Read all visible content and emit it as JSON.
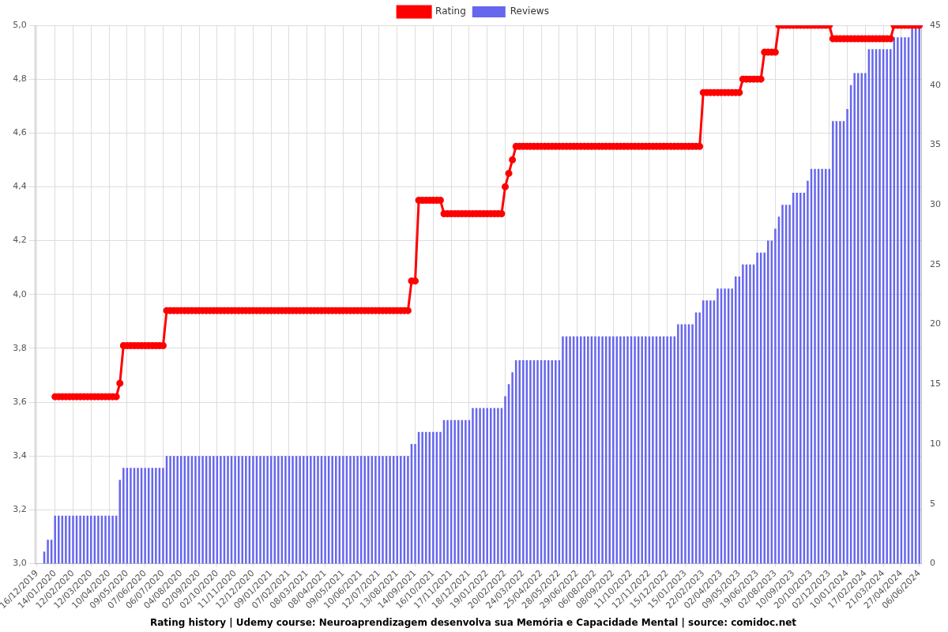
{
  "chart_data": {
    "type": "bar",
    "title": "Rating history | Udemy course: Neuroaprendizagem desenvolva sua Memória e Capacidade Mental | source: comidoc.net",
    "legend": "top",
    "grid": true,
    "categories": [
      "16/12/2019",
      null,
      null,
      null,
      null,
      "14/01/2020",
      null,
      null,
      null,
      null,
      "12/02/2020",
      null,
      null,
      null,
      null,
      "12/03/2020",
      null,
      null,
      null,
      null,
      "10/04/2020",
      null,
      null,
      null,
      null,
      "09/05/2020",
      null,
      null,
      null,
      null,
      "07/06/2020",
      null,
      null,
      null,
      null,
      "06/07/2020",
      null,
      null,
      null,
      null,
      "04/08/2020",
      null,
      null,
      null,
      null,
      "02/09/2020",
      null,
      null,
      null,
      null,
      "02/10/2020",
      null,
      null,
      null,
      null,
      "11/11/2020",
      null,
      null,
      null,
      null,
      "12/12/2020",
      null,
      null,
      null,
      null,
      "09/01/2021",
      null,
      null,
      null,
      null,
      "07/02/2021",
      null,
      null,
      null,
      null,
      "08/03/2021",
      null,
      null,
      null,
      null,
      "08/04/2021",
      null,
      null,
      null,
      null,
      "09/05/2021",
      null,
      null,
      null,
      null,
      "10/06/2021",
      null,
      null,
      null,
      null,
      "12/07/2021",
      null,
      null,
      null,
      null,
      "13/08/2021",
      null,
      null,
      null,
      null,
      "14/09/2021",
      null,
      null,
      null,
      null,
      "16/10/2021",
      null,
      null,
      null,
      null,
      "17/11/2021",
      null,
      null,
      null,
      null,
      "18/12/2021",
      null,
      null,
      null,
      null,
      "19/01/2022",
      null,
      null,
      null,
      null,
      "20/02/2022",
      null,
      null,
      null,
      null,
      "24/03/2022",
      null,
      null,
      null,
      null,
      "25/04/2022",
      null,
      null,
      null,
      null,
      "28/05/2022",
      null,
      null,
      null,
      null,
      "29/06/2022",
      null,
      null,
      null,
      null,
      "06/08/2022",
      null,
      null,
      null,
      null,
      "08/09/2022",
      null,
      null,
      null,
      null,
      "11/10/2022",
      null,
      null,
      null,
      null,
      "12/11/2022",
      null,
      null,
      null,
      null,
      "15/12/2022",
      null,
      null,
      null,
      null,
      "15/01/2023",
      null,
      null,
      null,
      null,
      "22/02/2023",
      null,
      null,
      null,
      null,
      "02/04/2023",
      null,
      null,
      null,
      null,
      "09/05/2023",
      null,
      null,
      null,
      null,
      "19/06/2023",
      null,
      null,
      null,
      null,
      "02/08/2023",
      null,
      null,
      null,
      null,
      "10/09/2023",
      null,
      null,
      null,
      null,
      "20/10/2023",
      null,
      null,
      null,
      null,
      "02/12/2023",
      null,
      null,
      null,
      null,
      "10/01/2024",
      null,
      null,
      null,
      null,
      "17/02/2024",
      null,
      null,
      null,
      null,
      "21/03/2024",
      null,
      null,
      null,
      null,
      "27/04/2024",
      null,
      null,
      null,
      null,
      "06/06/2024"
    ],
    "series": [
      {
        "name": "Rating",
        "type": "line",
        "color": "#ff0000",
        "marker": "circle",
        "axis": "y",
        "values": [
          null,
          null,
          null,
          null,
          null,
          3.62,
          3.62,
          3.62,
          3.62,
          3.62,
          3.62,
          3.62,
          3.62,
          3.62,
          3.62,
          3.62,
          3.62,
          3.62,
          3.62,
          3.62,
          3.62,
          3.62,
          3.62,
          3.67,
          3.81,
          3.81,
          3.81,
          3.81,
          3.81,
          3.81,
          3.81,
          3.81,
          3.81,
          3.81,
          3.81,
          3.81,
          3.94,
          3.94,
          3.94,
          3.94,
          3.94,
          3.94,
          3.94,
          3.94,
          3.94,
          3.94,
          3.94,
          3.94,
          3.94,
          3.94,
          3.94,
          3.94,
          3.94,
          3.94,
          3.94,
          3.94,
          3.94,
          3.94,
          3.94,
          3.94,
          3.94,
          3.94,
          3.94,
          3.94,
          3.94,
          3.94,
          3.94,
          3.94,
          3.94,
          3.94,
          3.94,
          3.94,
          3.94,
          3.94,
          3.94,
          3.94,
          3.94,
          3.94,
          3.94,
          3.94,
          3.94,
          3.94,
          3.94,
          3.94,
          3.94,
          3.94,
          3.94,
          3.94,
          3.94,
          3.94,
          3.94,
          3.94,
          3.94,
          3.94,
          3.94,
          3.94,
          3.94,
          3.94,
          3.94,
          3.94,
          3.94,
          3.94,
          3.94,
          3.94,
          4.05,
          4.05,
          4.35,
          4.35,
          4.35,
          4.35,
          4.35,
          4.35,
          4.35,
          4.3,
          4.3,
          4.3,
          4.3,
          4.3,
          4.3,
          4.3,
          4.3,
          4.3,
          4.3,
          4.3,
          4.3,
          4.3,
          4.3,
          4.3,
          4.3,
          4.3,
          4.4,
          4.45,
          4.5,
          4.55,
          4.55,
          4.55,
          4.55,
          4.55,
          4.55,
          4.55,
          4.55,
          4.55,
          4.55,
          4.55,
          4.55,
          4.55,
          4.55,
          4.55,
          4.55,
          4.55,
          4.55,
          4.55,
          4.55,
          4.55,
          4.55,
          4.55,
          4.55,
          4.55,
          4.55,
          4.55,
          4.55,
          4.55,
          4.55,
          4.55,
          4.55,
          4.55,
          4.55,
          4.55,
          4.55,
          4.55,
          4.55,
          4.55,
          4.55,
          4.55,
          4.55,
          4.55,
          4.55,
          4.55,
          4.55,
          4.55,
          4.55,
          4.55,
          4.55,
          4.55,
          4.55,
          4.75,
          4.75,
          4.75,
          4.75,
          4.75,
          4.75,
          4.75,
          4.75,
          4.75,
          4.75,
          4.75,
          4.8,
          4.8,
          4.8,
          4.8,
          4.8,
          4.8,
          4.9,
          4.9,
          4.9,
          4.9,
          5,
          5,
          5,
          5,
          5,
          5,
          5,
          5,
          5,
          5,
          5,
          5,
          5,
          5,
          5,
          4.95,
          4.95,
          4.95,
          4.95,
          4.95,
          4.95,
          4.95,
          4.95,
          4.95,
          4.95,
          4.95,
          4.95,
          4.95,
          4.95,
          4.95,
          4.95,
          4.95,
          5,
          5,
          5,
          5,
          5,
          5,
          5,
          5
        ]
      },
      {
        "name": "Reviews",
        "type": "bar",
        "color": "#6666ee",
        "axis": "y2",
        "values": [
          0,
          0,
          1,
          2,
          2,
          4,
          4,
          4,
          4,
          4,
          4,
          4,
          4,
          4,
          4,
          4,
          4,
          4,
          4,
          4,
          4,
          4,
          4,
          7,
          8,
          8,
          8,
          8,
          8,
          8,
          8,
          8,
          8,
          8,
          8,
          8,
          9,
          9,
          9,
          9,
          9,
          9,
          9,
          9,
          9,
          9,
          9,
          9,
          9,
          9,
          9,
          9,
          9,
          9,
          9,
          9,
          9,
          9,
          9,
          9,
          9,
          9,
          9,
          9,
          9,
          9,
          9,
          9,
          9,
          9,
          9,
          9,
          9,
          9,
          9,
          9,
          9,
          9,
          9,
          9,
          9,
          9,
          9,
          9,
          9,
          9,
          9,
          9,
          9,
          9,
          9,
          9,
          9,
          9,
          9,
          9,
          9,
          9,
          9,
          9,
          9,
          9,
          9,
          9,
          10,
          10,
          11,
          11,
          11,
          11,
          11,
          11,
          11,
          12,
          12,
          12,
          12,
          12,
          12,
          12,
          12,
          13,
          13,
          13,
          13,
          13,
          13,
          13,
          13,
          13,
          14,
          15,
          16,
          17,
          17,
          17,
          17,
          17,
          17,
          17,
          17,
          17,
          17,
          17,
          17,
          17,
          19,
          19,
          19,
          19,
          19,
          19,
          19,
          19,
          19,
          19,
          19,
          19,
          19,
          19,
          19,
          19,
          19,
          19,
          19,
          19,
          19,
          19,
          19,
          19,
          19,
          19,
          19,
          19,
          19,
          19,
          19,
          19,
          20,
          20,
          20,
          20,
          20,
          21,
          21,
          22,
          22,
          22,
          22,
          23,
          23,
          23,
          23,
          23,
          24,
          24,
          25,
          25,
          25,
          25,
          26,
          26,
          26,
          27,
          27,
          28,
          29,
          30,
          30,
          30,
          31,
          31,
          31,
          31,
          32,
          33,
          33,
          33,
          33,
          33,
          33,
          37,
          37,
          37,
          37,
          38,
          40,
          41,
          41,
          41,
          41,
          43,
          43,
          43,
          43,
          43,
          43,
          43,
          44,
          44,
          44,
          44,
          44,
          45,
          45,
          45
        ]
      }
    ],
    "ylim": [
      3,
      5
    ],
    "yticks": [
      {
        "value": 3,
        "label": "3,0"
      },
      {
        "value": 3.2,
        "label": "3,2"
      },
      {
        "value": 3.4,
        "label": "3,4"
      },
      {
        "value": 3.6,
        "label": "3,6"
      },
      {
        "value": 3.8,
        "label": "3,8"
      },
      {
        "value": 4,
        "label": "4,0"
      },
      {
        "value": 4.2,
        "label": "4,2"
      },
      {
        "value": 4.4,
        "label": "4,4"
      },
      {
        "value": 4.6,
        "label": "4,6"
      },
      {
        "value": 4.8,
        "label": "4,8"
      },
      {
        "value": 5,
        "label": "5,0"
      }
    ],
    "y2lim": [
      0,
      45
    ],
    "y2ticks": [
      0,
      5,
      10,
      15,
      20,
      25,
      30,
      35,
      40,
      45
    ]
  }
}
